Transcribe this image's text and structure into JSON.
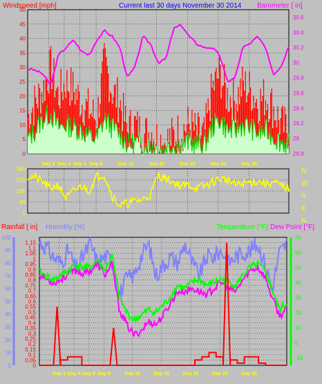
{
  "header": {
    "left": "Windspeed [mph]",
    "center": "Current last 30 days November 30 2014",
    "right": "Barometer [ in]"
  },
  "colors": {
    "background": "#c0c0c0",
    "wind_avg": "#ff0000",
    "wind_gust_fill": "#ccffcc",
    "wind_line": "#00dd00",
    "barometer": "#ff00ff",
    "direction": "#ffff00",
    "rainfall": "#ff0000",
    "humidity": "#8080ff",
    "temperature": "#00ff00",
    "dewpoint": "#ff00ff",
    "grid": "#000000",
    "day_labels": "#ffff00"
  },
  "chart_data": [
    {
      "type": "line",
      "id": "wind",
      "x_labels": [
        "Day 2",
        "Day 4",
        "Day 6",
        "Day 8",
        "Day 12",
        "Day 16",
        "Day 20",
        "Day 24",
        "Day 28"
      ],
      "left_axis": {
        "label": "Windspeed [mph]",
        "ticks": [
          "0",
          "5",
          "10",
          "15",
          "20",
          "25",
          "30",
          "35",
          "40",
          "45",
          "50"
        ],
        "range": [
          0,
          50
        ]
      },
      "right_axis": {
        "label": "Barometer [ in]",
        "ticks": [
          "28.8",
          "29",
          "29.2",
          "29.4",
          "29.6",
          "29.8",
          "30",
          "30.2",
          "30.4",
          "30.6"
        ],
        "range": [
          28.8,
          30.7
        ]
      },
      "series": [
        {
          "name": "Barometer",
          "values": [
            29.92,
            29.9,
            29.85,
            29.7,
            30.1,
            30.2,
            30.3,
            30.15,
            30.1,
            30.3,
            30.42,
            30.35,
            30.2,
            29.8,
            29.95,
            30.35,
            30.25,
            30.0,
            30.05,
            30.45,
            30.5,
            30.35,
            30.25,
            30.2,
            30.2,
            30.1,
            29.75,
            29.8,
            30.2,
            30.25,
            30.35,
            30.2,
            29.85,
            29.95,
            30.22
          ]
        },
        {
          "name": "Wind gust",
          "values": [
            12,
            18,
            22,
            30,
            20,
            25,
            22,
            18,
            15,
            12,
            32,
            22,
            18,
            8,
            10,
            6,
            8,
            5,
            4,
            6,
            8,
            10,
            7,
            6,
            22,
            28,
            20,
            18,
            24,
            22,
            18,
            20,
            16,
            10,
            8
          ]
        },
        {
          "name": "Wind average",
          "values": [
            5,
            8,
            12,
            14,
            9,
            10,
            9,
            8,
            6,
            5,
            12,
            9,
            7,
            3,
            4,
            3,
            3,
            2,
            2,
            3,
            3,
            4,
            3,
            3,
            9,
            12,
            8,
            8,
            10,
            9,
            7,
            8,
            6,
            4,
            3
          ]
        }
      ]
    },
    {
      "type": "line",
      "id": "direction",
      "left_axis": {
        "ticks": [
          "0",
          "90",
          "180",
          "270",
          "360"
        ],
        "range": [
          0,
          360
        ]
      },
      "right_axis": {
        "ticks": [
          "N",
          "W",
          "S",
          "E",
          "N"
        ]
      },
      "series": [
        {
          "name": "Wind direction",
          "values": [
            300,
            290,
            250,
            200,
            230,
            120,
            180,
            220,
            180,
            300,
            310,
            140,
            60,
            80,
            100,
            110,
            150,
            310,
            280,
            250,
            220,
            230,
            200,
            220,
            250,
            280,
            270,
            230,
            240,
            250,
            260,
            240,
            250,
            220,
            200
          ]
        }
      ]
    },
    {
      "type": "line",
      "id": "weather",
      "x_labels": [
        "Day 2",
        "Day 4",
        "Day 6",
        "Day 8",
        "Day 12",
        "Day 16",
        "Day 20",
        "Day 24",
        "Day 28"
      ],
      "rain_axis": {
        "label": "Rainfall [ in]",
        "ticks": [
          "0",
          "0.05",
          "0.1",
          "0.15",
          "0.2",
          "0.25",
          "0.3",
          "0.35",
          "0.4",
          "0.45",
          "0.5",
          "0.55",
          "0.6",
          "0.65",
          "0.7",
          "0.75",
          "0.8",
          "0.85",
          "0.9",
          "0.95",
          "1",
          "1.05",
          "1.1",
          "1.15"
        ],
        "range": [
          0,
          1.2
        ]
      },
      "humidity_axis": {
        "label": "Humidity [%]",
        "ticks": [
          "0",
          "10",
          "20",
          "30",
          "40",
          "50",
          "60",
          "70",
          "80",
          "90",
          "100"
        ],
        "range": [
          0,
          100
        ]
      },
      "temp_axis": {
        "label": "Temperature [°F]",
        "ticks": [
          "-10",
          "0",
          "10",
          "20",
          "30",
          "40",
          "50",
          "60",
          "70"
        ],
        "range": [
          -15,
          70
        ]
      },
      "dewpoint_label": "Dew Point [°F]",
      "series": [
        {
          "name": "Humidity",
          "values": [
            96,
            92,
            84,
            80,
            90,
            75,
            85,
            95,
            80,
            85,
            82,
            55,
            68,
            70,
            85,
            95,
            70,
            78,
            85,
            80,
            95,
            80,
            70,
            85,
            85,
            90,
            80,
            85,
            88,
            90,
            95,
            80,
            60,
            88,
            95
          ]
        },
        {
          "name": "Temperature",
          "values": [
            47,
            44,
            42,
            45,
            48,
            52,
            50,
            50,
            55,
            48,
            58,
            30,
            20,
            15,
            18,
            22,
            20,
            25,
            30,
            38,
            36,
            40,
            42,
            38,
            40,
            42,
            40,
            38,
            45,
            50,
            52,
            48,
            35,
            22,
            26
          ]
        },
        {
          "name": "Dew Point",
          "values": [
            46,
            42,
            40,
            42,
            46,
            48,
            46,
            48,
            52,
            45,
            52,
            22,
            12,
            5,
            8,
            14,
            12,
            18,
            26,
            34,
            34,
            36,
            34,
            32,
            36,
            40,
            36,
            34,
            42,
            48,
            50,
            44,
            30,
            18,
            22
          ]
        },
        {
          "name": "Rainfall",
          "values": [
            0,
            0,
            0.55,
            0.05,
            0.08,
            0.08,
            0,
            0,
            0,
            0,
            0.35,
            0,
            0,
            0,
            0,
            0,
            0,
            0,
            0,
            0,
            0,
            0,
            0.05,
            0.08,
            0.12,
            0.08,
            1.15,
            0.05,
            0.02,
            0.08,
            0.08,
            0.02,
            0,
            0,
            0
          ]
        }
      ]
    }
  ]
}
